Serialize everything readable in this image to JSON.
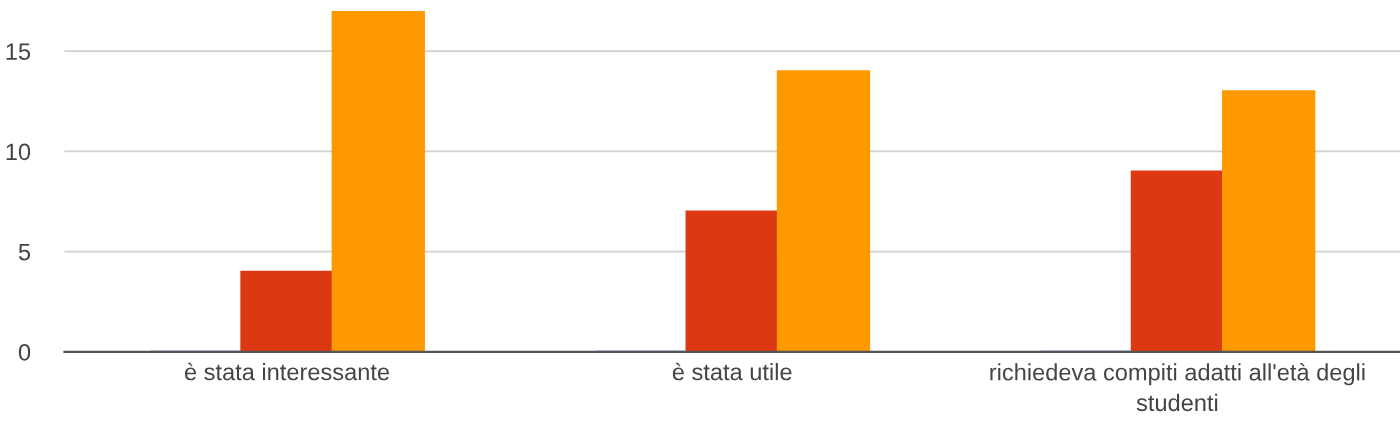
{
  "chart_data": {
    "type": "bar",
    "categories": [
      "è stata interessante",
      "è stata utile",
      "richiedeva compiti adatti all'età degli studenti"
    ],
    "series": [
      {
        "color": "#3366cc",
        "values": [
          0,
          0,
          0
        ]
      },
      {
        "color": "#dc3912",
        "values": [
          4,
          7,
          9
        ]
      },
      {
        "color": "#ff9900",
        "values": [
          17,
          14,
          13
        ]
      }
    ],
    "ylim": [
      0,
      17
    ],
    "yticks": [
      0,
      5,
      10,
      15
    ],
    "grid": "y",
    "legend": false
  }
}
